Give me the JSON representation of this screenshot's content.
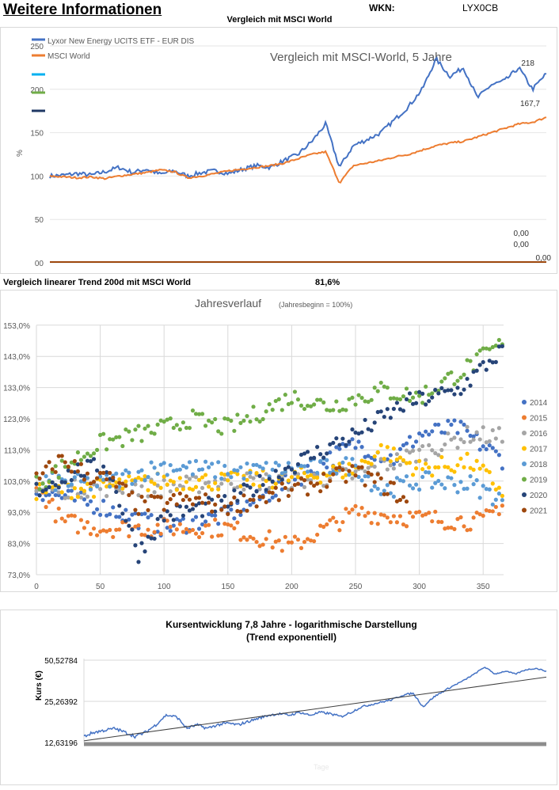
{
  "header": {
    "title": "Weitere Informationen",
    "wkn_label": "WKN:",
    "wkn_value": "LYX0CB",
    "section_title": "Vergleich mit MSCI World"
  },
  "trend_row": {
    "label": "Vergleich linearer Trend 200d mit MSCI World",
    "value": "81,6%"
  },
  "chart_data": [
    {
      "type": "line",
      "title": "Vergleich mit MSCI-World, 5 Jahre",
      "ylabel": "%",
      "ylim": [
        0,
        250
      ],
      "yticks": [
        "00",
        "50",
        "100",
        "150",
        "200",
        "250"
      ],
      "grid": true,
      "legend": "top-left",
      "series": [
        {
          "name": "Lyxor New Energy UCITS ETF - EUR DIS",
          "color": "#4472c4",
          "end_label": "218",
          "values": [
            100,
            101,
            103,
            101,
            105,
            110,
            104,
            108,
            102,
            106,
            100,
            104,
            106,
            103,
            108,
            112,
            110,
            118,
            125,
            140,
            160,
            110,
            135,
            142,
            150,
            165,
            180,
            200,
            235,
            215,
            225,
            190,
            205,
            210,
            225,
            200,
            218
          ]
        },
        {
          "name": "MSCI World",
          "color": "#ed7d31",
          "end_label": "167,7",
          "values": [
            100,
            99,
            98,
            99,
            97,
            100,
            102,
            104,
            107,
            105,
            98,
            100,
            103,
            106,
            108,
            110,
            112,
            115,
            120,
            125,
            128,
            92,
            112,
            115,
            118,
            122,
            125,
            130,
            135,
            138,
            140,
            145,
            150,
            155,
            160,
            162,
            167.7
          ]
        },
        {
          "name": "",
          "color": "#00b0f0",
          "end_label": "0,00",
          "values": [
            0,
            0
          ]
        },
        {
          "name": "",
          "color": "#70ad47",
          "end_label": "0,00",
          "values": [
            0,
            0
          ]
        },
        {
          "name": "",
          "color": "#1f3864",
          "end_label": "0,00",
          "values": [
            0,
            0
          ]
        }
      ]
    },
    {
      "type": "scatter",
      "title": "Jahresverlauf",
      "subtitle": "(Jahresbeginn = 100%)",
      "xlim": [
        0,
        365
      ],
      "ylim": [
        73,
        153
      ],
      "xticks": [
        "0",
        "50",
        "100",
        "150",
        "200",
        "250",
        "300",
        "350"
      ],
      "yticks": [
        "73,0%",
        "83,0%",
        "93,0%",
        "103,0%",
        "113,0%",
        "123,0%",
        "133,0%",
        "143,0%",
        "153,0%"
      ],
      "grid": true,
      "legend": "right",
      "series": [
        {
          "name": "2014",
          "color": "#4472c4",
          "points": [
            [
              0,
              100
            ],
            [
              50,
              95
            ],
            [
              100,
              88
            ],
            [
              150,
              92
            ],
            [
              200,
              103
            ],
            [
              250,
              115
            ],
            [
              280,
              110
            ],
            [
              300,
              118
            ],
            [
              330,
              120
            ],
            [
              365,
              110
            ]
          ]
        },
        {
          "name": "2015",
          "color": "#ed7d31",
          "points": [
            [
              0,
              102
            ],
            [
              20,
              90
            ],
            [
              50,
              88
            ],
            [
              100,
              88
            ],
            [
              150,
              88
            ],
            [
              200,
              82
            ],
            [
              250,
              93
            ],
            [
              300,
              91
            ],
            [
              350,
              90
            ],
            [
              365,
              96
            ]
          ]
        },
        {
          "name": "2016",
          "color": "#a5a5a5",
          "points": [
            [
              0,
              100
            ],
            [
              50,
              101
            ],
            [
              100,
              101
            ],
            [
              150,
              103
            ],
            [
              200,
              103
            ],
            [
              250,
              105
            ],
            [
              300,
              112
            ],
            [
              340,
              118
            ],
            [
              365,
              117
            ]
          ]
        },
        {
          "name": "2017",
          "color": "#ffc000",
          "points": [
            [
              0,
              100
            ],
            [
              50,
              101
            ],
            [
              100,
              103
            ],
            [
              150,
              103
            ],
            [
              200,
              104
            ],
            [
              250,
              107
            ],
            [
              270,
              113
            ],
            [
              300,
              107
            ],
            [
              340,
              109
            ],
            [
              365,
              100
            ]
          ]
        },
        {
          "name": "2018",
          "color": "#5b9bd5",
          "points": [
            [
              0,
              103
            ],
            [
              50,
              102
            ],
            [
              100,
              108
            ],
            [
              150,
              106
            ],
            [
              200,
              107
            ],
            [
              250,
              108
            ],
            [
              270,
              100
            ],
            [
              300,
              103
            ],
            [
              340,
              102
            ],
            [
              365,
              97
            ]
          ]
        },
        {
          "name": "2019",
          "color": "#70ad47",
          "points": [
            [
              0,
              102
            ],
            [
              50,
              115
            ],
            [
              100,
              120
            ],
            [
              120,
              123
            ],
            [
              150,
              120
            ],
            [
              200,
              130
            ],
            [
              230,
              127
            ],
            [
              270,
              132
            ],
            [
              300,
              130
            ],
            [
              340,
              140
            ],
            [
              365,
              147
            ]
          ]
        },
        {
          "name": "2020",
          "color": "#264478",
          "points": [
            [
              0,
              100
            ],
            [
              30,
              106
            ],
            [
              55,
              108
            ],
            [
              80,
              80
            ],
            [
              100,
              92
            ],
            [
              150,
              96
            ],
            [
              200,
              108
            ],
            [
              250,
              118
            ],
            [
              290,
              128
            ],
            [
              330,
              132
            ],
            [
              365,
              145
            ]
          ]
        },
        {
          "name": "2021",
          "color": "#9e480e",
          "points": [
            [
              0,
              103
            ],
            [
              20,
              110
            ],
            [
              40,
              105
            ],
            [
              60,
              103
            ],
            [
              80,
              95
            ],
            [
              120,
              97
            ],
            [
              150,
              95
            ],
            [
              200,
              100
            ],
            [
              250,
              106
            ],
            [
              280,
              100
            ],
            [
              290,
              96
            ]
          ]
        }
      ]
    },
    {
      "type": "line",
      "title": "Kursentwicklung 7,8 Jahre - logarithmische Darstellung",
      "subtitle": "(Trend exponentiell)",
      "ylabel": "Kurs (€)",
      "xlabel": "Tage",
      "yscale": "log",
      "ylim": [
        12.63196,
        50.52784
      ],
      "yticks": [
        "12,63196",
        "25,26392",
        "50,52784"
      ],
      "grid": true,
      "series": [
        {
          "color": "#4472c4",
          "values": [
            14,
            15,
            15.5,
            16,
            15,
            14,
            15,
            17,
            20,
            19.5,
            16,
            17,
            16,
            17,
            17.5,
            17,
            18,
            19,
            20,
            20.5,
            20,
            21,
            20,
            21,
            20.5,
            19.5,
            21,
            23,
            24,
            25,
            26,
            28,
            29,
            23,
            27,
            30,
            33,
            36,
            40,
            45,
            40,
            42,
            40,
            43,
            44,
            42
          ]
        },
        {
          "name": "Trend",
          "color": "#404040",
          "values": [
            13,
            38
          ]
        }
      ]
    }
  ]
}
